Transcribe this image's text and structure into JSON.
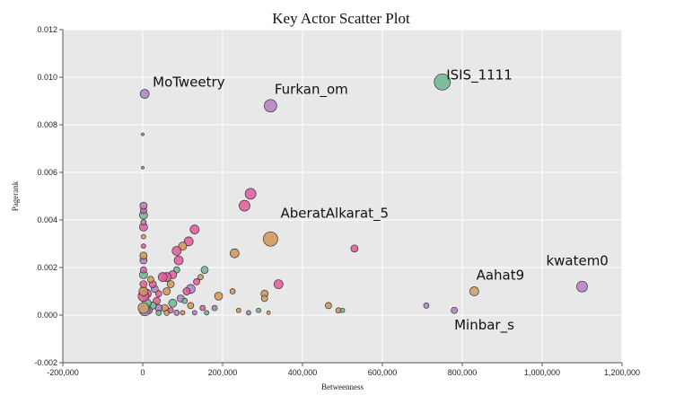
{
  "chart_data": {
    "type": "scatter",
    "title": "Key Actor Scatter Plot",
    "xlabel": "Betweenness",
    "ylabel": "Pagerank",
    "xlim": [
      -200000,
      1200000
    ],
    "ylim": [
      -0.002,
      0.012
    ],
    "grid": true,
    "background_color": "#e8e8e8",
    "x_ticks": [
      -200000,
      0,
      200000,
      400000,
      600000,
      800000,
      1000000,
      1200000
    ],
    "x_tick_labels": [
      "-200,000",
      "0",
      "200,000",
      "400,000",
      "600,000",
      "800,000",
      "1,000,000",
      "1,200,000"
    ],
    "y_ticks": [
      -0.002,
      0.0,
      0.002,
      0.004,
      0.006,
      0.008,
      0.01,
      0.012
    ],
    "y_tick_labels": [
      "-0.002",
      "0.000",
      "0.002",
      "0.004",
      "0.006",
      "0.008",
      "0.010",
      "0.012"
    ],
    "points": [
      {
        "x": 750000,
        "y": 0.0098,
        "r": 9,
        "color": "#6fb58f"
      },
      {
        "x": 5000,
        "y": 0.0093,
        "r": 5,
        "color": "#b07fc0"
      },
      {
        "x": 320000,
        "y": 0.0088,
        "r": 7,
        "color": "#b07fc0"
      },
      {
        "x": 320000,
        "y": 0.0032,
        "r": 8,
        "color": "#d29455"
      },
      {
        "x": 270000,
        "y": 0.0051,
        "r": 6,
        "color": "#e05a9a"
      },
      {
        "x": 255000,
        "y": 0.0046,
        "r": 6,
        "color": "#e05a9a"
      },
      {
        "x": 1100000,
        "y": 0.0012,
        "r": 6,
        "color": "#b07fc0"
      },
      {
        "x": 830000,
        "y": 0.001,
        "r": 5,
        "color": "#c9a26a"
      },
      {
        "x": 780000,
        "y": 0.0002,
        "r": 3.5,
        "color": "#b07fc0"
      },
      {
        "x": 710000,
        "y": 0.0004,
        "r": 3,
        "color": "#b07fc0"
      },
      {
        "x": 530000,
        "y": 0.0028,
        "r": 4,
        "color": "#e05a9a"
      },
      {
        "x": 465000,
        "y": 0.0004,
        "r": 3.5,
        "color": "#d29455"
      },
      {
        "x": 490000,
        "y": 0.0002,
        "r": 3,
        "color": "#d29455"
      },
      {
        "x": 500000,
        "y": 0.0002,
        "r": 2.5,
        "color": "#6fb58f"
      },
      {
        "x": 340000,
        "y": 0.0013,
        "r": 5,
        "color": "#e05a9a"
      },
      {
        "x": 305000,
        "y": 0.0009,
        "r": 4,
        "color": "#d29455"
      },
      {
        "x": 305000,
        "y": 0.0007,
        "r": 3.5,
        "color": "#c9a26a"
      },
      {
        "x": 230000,
        "y": 0.0026,
        "r": 5,
        "color": "#d29455"
      },
      {
        "x": 190000,
        "y": 0.0008,
        "r": 4.5,
        "color": "#d29455"
      },
      {
        "x": 225000,
        "y": 0.001,
        "r": 3,
        "color": "#d29455"
      },
      {
        "x": 155000,
        "y": 0.0019,
        "r": 4,
        "color": "#6fb58f"
      },
      {
        "x": 145000,
        "y": 0.0016,
        "r": 3,
        "color": "#d29455"
      },
      {
        "x": 135000,
        "y": 0.0014,
        "r": 3.5,
        "color": "#e05a9a"
      },
      {
        "x": 130000,
        "y": 0.0036,
        "r": 5,
        "color": "#e05a9a"
      },
      {
        "x": 115000,
        "y": 0.0031,
        "r": 5,
        "color": "#e05a9a"
      },
      {
        "x": 100000,
        "y": 0.0029,
        "r": 4.5,
        "color": "#d29455"
      },
      {
        "x": 85000,
        "y": 0.0027,
        "r": 5,
        "color": "#e05a9a"
      },
      {
        "x": 90000,
        "y": 0.0023,
        "r": 5,
        "color": "#e05a9a"
      },
      {
        "x": 85000,
        "y": 0.0019,
        "r": 3.5,
        "color": "#6fb58f"
      },
      {
        "x": 75000,
        "y": 0.0017,
        "r": 4.5,
        "color": "#e05a9a"
      },
      {
        "x": 60000,
        "y": 0.0016,
        "r": 5,
        "color": "#e05a9a"
      },
      {
        "x": 50000,
        "y": 0.0016,
        "r": 5,
        "color": "#e05a9a"
      },
      {
        "x": 70000,
        "y": 0.0013,
        "r": 4,
        "color": "#d29455"
      },
      {
        "x": 60000,
        "y": 0.001,
        "r": 4,
        "color": "#d29455"
      },
      {
        "x": 40000,
        "y": 0.0009,
        "r": 3.5,
        "color": "#e05a9a"
      },
      {
        "x": 120000,
        "y": 0.0011,
        "r": 5,
        "color": "#b07fc0"
      },
      {
        "x": 110000,
        "y": 0.001,
        "r": 4,
        "color": "#e05a9a"
      },
      {
        "x": 95000,
        "y": 0.0007,
        "r": 4,
        "color": "#b07fc0"
      },
      {
        "x": 105000,
        "y": 0.0006,
        "r": 3,
        "color": "#6fb58f"
      },
      {
        "x": 120000,
        "y": 0.0004,
        "r": 3.5,
        "color": "#d29455"
      },
      {
        "x": 150000,
        "y": 0.0003,
        "r": 3,
        "color": "#e05a9a"
      },
      {
        "x": 180000,
        "y": 0.0003,
        "r": 3,
        "color": "#b07fc0"
      },
      {
        "x": 75000,
        "y": 0.0005,
        "r": 4.5,
        "color": "#6fb58f"
      },
      {
        "x": 55000,
        "y": 0.0003,
        "r": 4,
        "color": "#d29455"
      },
      {
        "x": 40000,
        "y": 0.0003,
        "r": 4,
        "color": "#b07fc0"
      },
      {
        "x": 35000,
        "y": 0.0006,
        "r": 4,
        "color": "#e05a9a"
      },
      {
        "x": 30000,
        "y": 0.0011,
        "r": 4,
        "color": "#b07fc0"
      },
      {
        "x": 25000,
        "y": 0.0013,
        "r": 4,
        "color": "#e05a9a"
      },
      {
        "x": 20000,
        "y": 0.0015,
        "r": 3.5,
        "color": "#d29455"
      },
      {
        "x": 25000,
        "y": 0.0004,
        "r": 4,
        "color": "#6fb58f"
      },
      {
        "x": 15000,
        "y": 0.0002,
        "r": 4,
        "color": "#b07fc0"
      },
      {
        "x": 10000,
        "y": 0.0005,
        "r": 5,
        "color": "#6fb58f"
      },
      {
        "x": 10000,
        "y": 0.0009,
        "r": 5,
        "color": "#e05a9a"
      },
      {
        "x": 5000,
        "y": 0.0002,
        "r": 6,
        "color": "#b07fc0"
      },
      {
        "x": 2000,
        "y": 0.0003,
        "r": 6,
        "color": "#c9a26a"
      },
      {
        "x": 2000,
        "y": 0.0008,
        "r": 6,
        "color": "#e05a9a"
      },
      {
        "x": 2000,
        "y": 0.001,
        "r": 5,
        "color": "#d29455"
      },
      {
        "x": 2000,
        "y": 0.0013,
        "r": 4,
        "color": "#e05a9a"
      },
      {
        "x": 2000,
        "y": 0.0017,
        "r": 4.5,
        "color": "#6fb58f"
      },
      {
        "x": 2000,
        "y": 0.0019,
        "r": 3.5,
        "color": "#e05a9a"
      },
      {
        "x": 2000,
        "y": 0.0023,
        "r": 4,
        "color": "#b07fc0"
      },
      {
        "x": 2000,
        "y": 0.0025,
        "r": 4,
        "color": "#d29455"
      },
      {
        "x": 2000,
        "y": 0.0029,
        "r": 2.5,
        "color": "#e05a9a"
      },
      {
        "x": 2000,
        "y": 0.0033,
        "r": 2.5,
        "color": "#d29455"
      },
      {
        "x": 2000,
        "y": 0.0037,
        "r": 4.5,
        "color": "#e05a9a"
      },
      {
        "x": 2000,
        "y": 0.0039,
        "r": 3,
        "color": "#b07fc0"
      },
      {
        "x": 2000,
        "y": 0.0042,
        "r": 4.5,
        "color": "#6fb58f"
      },
      {
        "x": 2000,
        "y": 0.0044,
        "r": 3.5,
        "color": "#e05a9a"
      },
      {
        "x": 2000,
        "y": 0.0046,
        "r": 4,
        "color": "#b07fc0"
      },
      {
        "x": 0,
        "y": 0.0062,
        "r": 1.5,
        "color": "#6fb58f"
      },
      {
        "x": 0,
        "y": 0.0076,
        "r": 1.5,
        "color": "#6fb58f"
      },
      {
        "x": 40000,
        "y": 0.0001,
        "r": 3,
        "color": "#6fb58f"
      },
      {
        "x": 60000,
        "y": 0.0001,
        "r": 3,
        "color": "#d29455"
      },
      {
        "x": 70000,
        "y": 0.0002,
        "r": 3,
        "color": "#e05a9a"
      },
      {
        "x": 85000,
        "y": 0.0001,
        "r": 3,
        "color": "#b07fc0"
      },
      {
        "x": 100000,
        "y": 0.0001,
        "r": 2.5,
        "color": "#d29455"
      },
      {
        "x": 130000,
        "y": 0.0001,
        "r": 2.5,
        "color": "#b07fc0"
      },
      {
        "x": 160000,
        "y": 0.0001,
        "r": 2.5,
        "color": "#6fb58f"
      },
      {
        "x": 240000,
        "y": 0.0002,
        "r": 2.5,
        "color": "#d29455"
      },
      {
        "x": 265000,
        "y": 0.0001,
        "r": 2.5,
        "color": "#b07fc0"
      },
      {
        "x": 290000,
        "y": 0.0002,
        "r": 2.5,
        "color": "#6fb58f"
      },
      {
        "x": 315000,
        "y": 0.0001,
        "r": 2,
        "color": "#d29455"
      }
    ],
    "annotations": [
      {
        "text": "ISIS_1111",
        "x": 760000,
        "y": 0.0099
      },
      {
        "text": "MoTweetry",
        "x": 25000,
        "y": 0.0096
      },
      {
        "text": "Furkan_om",
        "x": 330000,
        "y": 0.0093
      },
      {
        "text": "AberatAlkarat_5",
        "x": 345000,
        "y": 0.0041
      },
      {
        "text": "kwatem0",
        "x": 1010000,
        "y": 0.0021
      },
      {
        "text": "Aahat9",
        "x": 835000,
        "y": 0.0015
      },
      {
        "text": "Minbar_s",
        "x": 780000,
        "y": -0.0006
      }
    ]
  }
}
